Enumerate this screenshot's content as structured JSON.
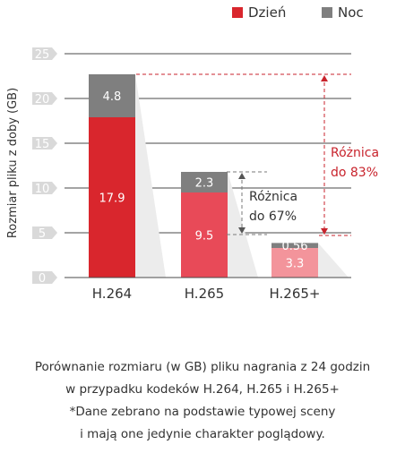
{
  "chart_data": {
    "type": "bar",
    "stacked": true,
    "categories": [
      "H.264",
      "H.265",
      "H.265+"
    ],
    "series": [
      {
        "name": "Dzień",
        "values": [
          17.9,
          9.5,
          3.3
        ],
        "labels": [
          "17.9",
          "9.5",
          "3.3"
        ],
        "colors": [
          "#d9262d",
          "#e84a58",
          "#f3949b"
        ]
      },
      {
        "name": "Noc",
        "values": [
          4.8,
          2.3,
          0.56
        ],
        "labels": [
          "4.8",
          "2.3",
          "0.56"
        ],
        "color": "#7f7f7f"
      }
    ],
    "ylabel": "Rozmiar pliku z doby (GB)",
    "yticks": [
      "0",
      "5",
      "10",
      "15",
      "20",
      "25"
    ],
    "ylim": [
      0,
      25
    ],
    "grid": true,
    "legend": "top-right",
    "annotations": [
      {
        "text_lines": [
          "Różnica",
          "do 67%"
        ],
        "from": "H.264",
        "to": "H.265",
        "color": "#333333"
      },
      {
        "text_lines": [
          "Różnica",
          "do 83%"
        ],
        "from": "H.264",
        "to": "H.265+",
        "color": "#c8232c"
      }
    ]
  },
  "caption": [
    "Porównanie rozmiaru (w GB) pliku nagrania z 24 godzin",
    "w przypadku kodeków H.264, H.265 i H.265+",
    "*Dane zebrano na podstawie typowej sceny",
    "i mają one jedynie charakter poglądowy."
  ]
}
